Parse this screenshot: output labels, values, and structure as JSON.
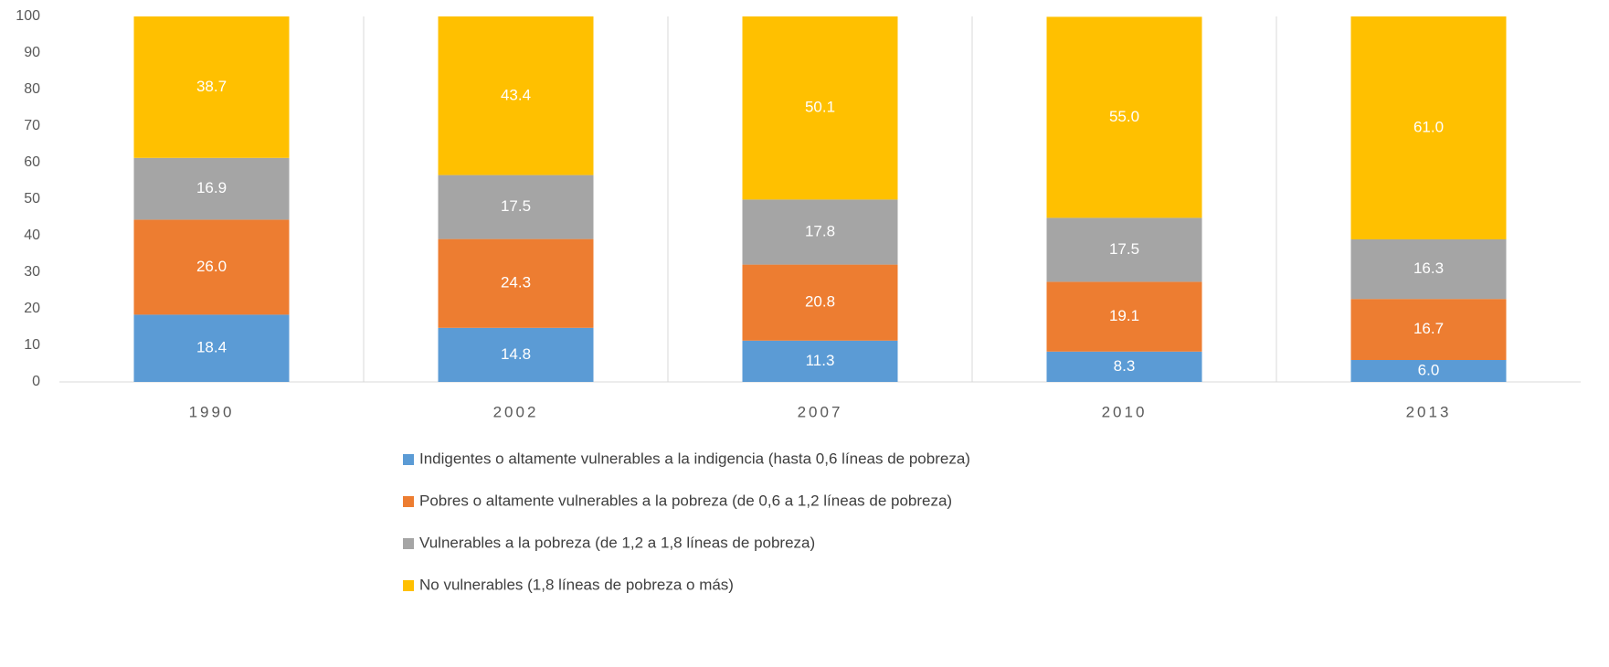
{
  "chart_data": {
    "type": "stacked_bar",
    "categories": [
      "1990",
      "2002",
      "2007",
      "2010",
      "2013"
    ],
    "series": [
      {
        "name": "Indigentes o altamente vulnerables a la indigencia (hasta 0,6 líneas de pobreza)",
        "color": "#5b9bd5",
        "values": [
          18.4,
          14.8,
          11.3,
          8.3,
          6.0
        ],
        "value_labels": [
          "18.4",
          "14.8",
          "11.3",
          "8.3",
          "6.0"
        ]
      },
      {
        "name": "Pobres o altamente vulnerables a la pobreza (de 0,6 a 1,2 líneas de pobreza)",
        "color": "#ed7d31",
        "values": [
          26.0,
          24.3,
          20.8,
          19.1,
          16.7
        ],
        "value_labels": [
          "26.0",
          "24.3",
          "20.8",
          "19.1",
          "16.7"
        ]
      },
      {
        "name": "Vulnerables a la pobreza (de 1,2 a 1,8 líneas de pobreza)",
        "color": "#a5a5a5",
        "values": [
          16.9,
          17.5,
          17.8,
          17.5,
          16.3
        ],
        "value_labels": [
          "16.9",
          "17.5",
          "17.8",
          "17.5",
          "16.3"
        ]
      },
      {
        "name": "No vulnerables (1,8 líneas de pobreza o más)",
        "color": "#ffc000",
        "values": [
          38.7,
          43.4,
          50.1,
          55.0,
          61.0
        ],
        "value_labels": [
          "38.7",
          "43.4",
          "50.1",
          "55.0",
          "61.0"
        ]
      }
    ],
    "ylim": [
      0,
      100
    ],
    "yticks": [
      0,
      10,
      20,
      30,
      40,
      50,
      60,
      70,
      80,
      90,
      100
    ],
    "legend": "bottom"
  }
}
